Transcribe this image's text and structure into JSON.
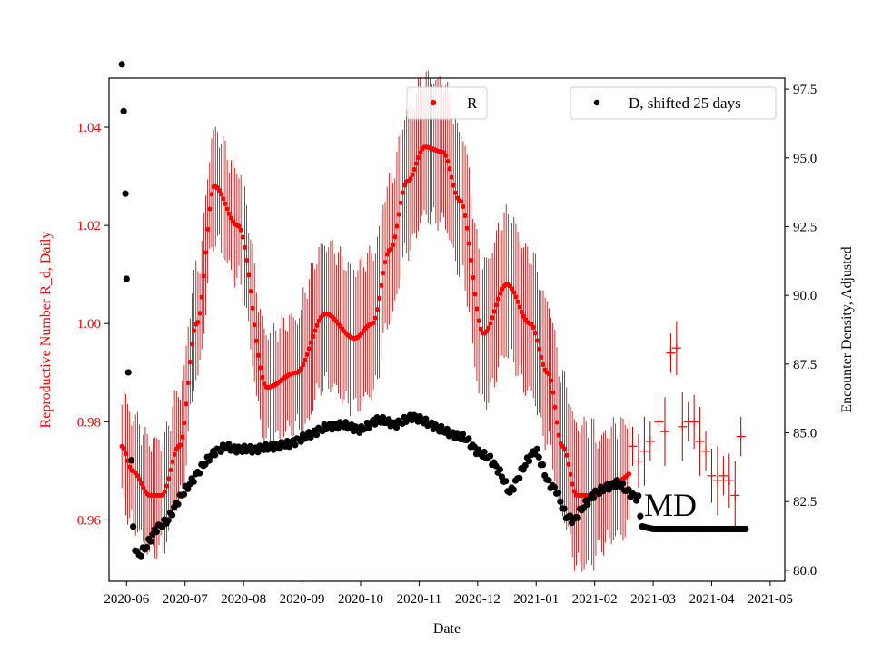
{
  "chart_data": {
    "type": "scatter",
    "xlabel": "Date",
    "ylabel_left": "Reproductive Number R_d, Daily",
    "ylabel_right": "Encounter Density, Adjusted",
    "annotation": "MD",
    "x_tick_labels": [
      "2020-06",
      "2020-07",
      "2020-08",
      "2020-09",
      "2020-10",
      "2020-11",
      "2020-12",
      "2021-01",
      "2021-02",
      "2021-03",
      "2021-04",
      "2021-05"
    ],
    "x_range_months": [
      -0.3,
      11.25
    ],
    "ylim_left": [
      0.9475,
      1.05
    ],
    "yticks_left": [
      "0.96",
      "0.98",
      "1.00",
      "1.02",
      "1.04"
    ],
    "ylim_right": [
      79.6,
      97.9
    ],
    "yticks_right": [
      "80.0",
      "82.5",
      "85.0",
      "87.5",
      "90.0",
      "92.5",
      "95.0",
      "97.5"
    ],
    "legend_left": {
      "label": "R",
      "placement": "top-center"
    },
    "legend_right": {
      "label": "D, shifted 25 days",
      "placement": "top-right"
    },
    "colors": {
      "r_series": "#ff0000",
      "r_error": "#b20000",
      "d_series": "#000000",
      "left_axis": "#ff0000"
    },
    "series_R_smooth_knots": {
      "x_months": [
        -0.08,
        0.1,
        0.4,
        0.6,
        0.9,
        1.2,
        1.5,
        1.9,
        2.4,
        2.9,
        3.4,
        3.9,
        4.2,
        4.5,
        4.8,
        5.1,
        5.4,
        5.7,
        6.1,
        6.5,
        6.9,
        7.2,
        7.45,
        7.7,
        8.0,
        8.4,
        8.7,
        8.9,
        9.05
      ],
      "values": [
        0.975,
        0.97,
        0.965,
        0.965,
        0.975,
        1.0,
        1.028,
        1.02,
        0.987,
        0.99,
        1.002,
        0.997,
        1.0,
        1.015,
        1.029,
        1.036,
        1.035,
        1.025,
        0.998,
        1.008,
        1.0,
        0.99,
        0.975,
        0.965,
        0.965,
        0.968,
        0.97,
        0.971,
        0.971
      ]
    },
    "series_R_late_markers": {
      "x_months": [
        8.65,
        8.75,
        8.85,
        8.95,
        9.1,
        9.2,
        9.3,
        9.4,
        9.5,
        9.6,
        9.7,
        9.8,
        9.9,
        10.0,
        10.1,
        10.2,
        10.3,
        10.4,
        10.5
      ],
      "values": [
        0.975,
        0.972,
        0.974,
        0.976,
        0.98,
        0.978,
        0.994,
        0.995,
        0.979,
        0.98,
        0.98,
        0.976,
        0.974,
        0.969,
        0.968,
        0.969,
        0.968,
        0.965,
        0.977
      ]
    },
    "series_D_knots": {
      "x_months": [
        -0.08,
        -0.05,
        -0.02,
        0.0,
        0.03,
        0.08,
        0.12,
        0.2,
        0.35,
        0.5,
        0.7,
        0.9,
        1.1,
        1.3,
        1.5,
        1.7,
        1.9,
        2.2,
        2.5,
        2.8,
        3.1,
        3.4,
        3.7,
        4.0,
        4.3,
        4.6,
        4.9,
        5.2,
        5.5,
        5.8,
        6.0,
        6.2,
        6.4,
        6.55,
        6.7,
        6.85,
        7.0,
        7.2,
        7.35,
        7.5,
        7.65,
        7.8,
        8.0,
        8.2,
        8.4,
        8.6,
        8.75,
        8.8,
        9.0,
        10.6
      ],
      "values": [
        98.4,
        96.7,
        93.7,
        90.6,
        87.2,
        84.0,
        81.0,
        80.5,
        80.9,
        81.5,
        81.8,
        82.6,
        83.2,
        83.8,
        84.3,
        84.5,
        84.4,
        84.4,
        84.5,
        84.6,
        84.9,
        85.2,
        85.3,
        85.1,
        85.5,
        85.3,
        85.6,
        85.3,
        85.0,
        84.8,
        84.3,
        84.1,
        83.5,
        82.8,
        83.4,
        84.0,
        84.4,
        83.2,
        82.9,
        82.0,
        81.8,
        82.3,
        82.8,
        83.0,
        83.2,
        82.8,
        82.6,
        81.6,
        81.5,
        81.5
      ]
    }
  }
}
